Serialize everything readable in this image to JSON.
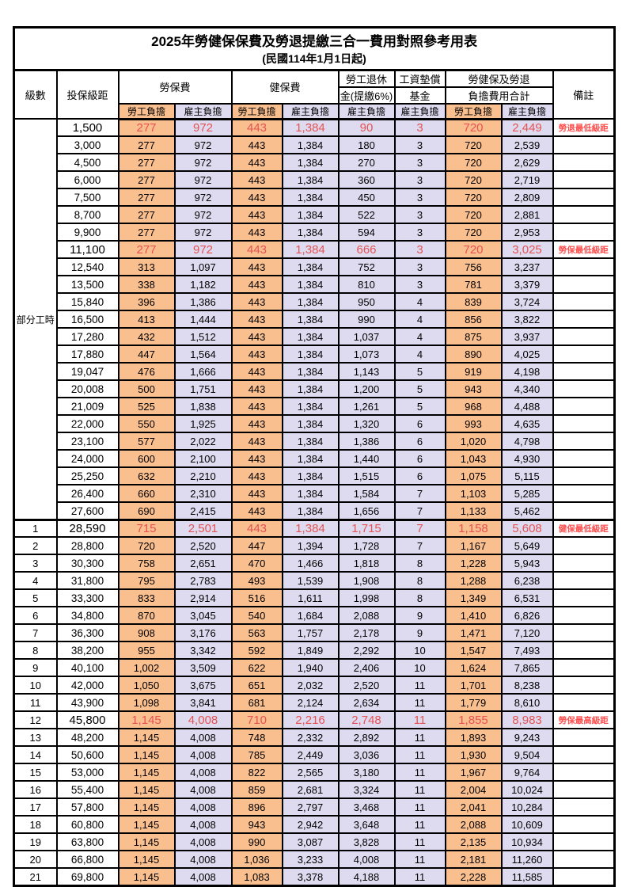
{
  "title": "2025年勞健保保費及勞退提繳三合一費用對照參考用表",
  "subtitle": "(民國114年1月1日起)",
  "columns": {
    "level": "級數",
    "bracket": "投保級距",
    "labor_group": "勞保費",
    "health_group": "健保費",
    "pension_line1": "勞工退休",
    "pension_line2": "金(提繳6%)",
    "wage_fund_line1": "工資墊償",
    "wage_fund_line2": "基金",
    "total_line1": "勞健保及勞退",
    "total_line2": "負擔費用合計",
    "note": "備註",
    "employee": "勞工負擔",
    "employer": "雇主負擔"
  },
  "part_time_label": "部分工時",
  "part_time_rowspan": 23,
  "colors": {
    "employee_bg": "#FABF8F",
    "employer_bg": "#DEDBF0",
    "highlight_value_text": "#E55353",
    "note_text": "#FF4D4D",
    "border": "#000000"
  },
  "rows": [
    {
      "level": "",
      "bracket": "1,500",
      "values": [
        "277",
        "972",
        "443",
        "1,384",
        "90",
        "3",
        "720",
        "2,449"
      ],
      "note": "勞退最低級距",
      "highlight": true,
      "section_start": false
    },
    {
      "level": "",
      "bracket": "3,000",
      "values": [
        "277",
        "972",
        "443",
        "1,384",
        "180",
        "3",
        "720",
        "2,539"
      ],
      "note": "",
      "highlight": false,
      "section_start": false
    },
    {
      "level": "",
      "bracket": "4,500",
      "values": [
        "277",
        "972",
        "443",
        "1,384",
        "270",
        "3",
        "720",
        "2,629"
      ],
      "note": "",
      "highlight": false,
      "section_start": false
    },
    {
      "level": "",
      "bracket": "6,000",
      "values": [
        "277",
        "972",
        "443",
        "1,384",
        "360",
        "3",
        "720",
        "2,719"
      ],
      "note": "",
      "highlight": false,
      "section_start": false
    },
    {
      "level": "",
      "bracket": "7,500",
      "values": [
        "277",
        "972",
        "443",
        "1,384",
        "450",
        "3",
        "720",
        "2,809"
      ],
      "note": "",
      "highlight": false,
      "section_start": false
    },
    {
      "level": "",
      "bracket": "8,700",
      "values": [
        "277",
        "972",
        "443",
        "1,384",
        "522",
        "3",
        "720",
        "2,881"
      ],
      "note": "",
      "highlight": false,
      "section_start": false
    },
    {
      "level": "",
      "bracket": "9,900",
      "values": [
        "277",
        "972",
        "443",
        "1,384",
        "594",
        "3",
        "720",
        "2,953"
      ],
      "note": "",
      "highlight": false,
      "section_start": false
    },
    {
      "level": "",
      "bracket": "11,100",
      "values": [
        "277",
        "972",
        "443",
        "1,384",
        "666",
        "3",
        "720",
        "3,025"
      ],
      "note": "勞保最低級距",
      "highlight": true,
      "section_start": false
    },
    {
      "level": "",
      "bracket": "12,540",
      "values": [
        "313",
        "1,097",
        "443",
        "1,384",
        "752",
        "3",
        "756",
        "3,237"
      ],
      "note": "",
      "highlight": false,
      "section_start": false
    },
    {
      "level": "",
      "bracket": "13,500",
      "values": [
        "338",
        "1,182",
        "443",
        "1,384",
        "810",
        "3",
        "781",
        "3,379"
      ],
      "note": "",
      "highlight": false,
      "section_start": false
    },
    {
      "level": "",
      "bracket": "15,840",
      "values": [
        "396",
        "1,386",
        "443",
        "1,384",
        "950",
        "4",
        "839",
        "3,724"
      ],
      "note": "",
      "highlight": false,
      "section_start": false
    },
    {
      "level": "",
      "bracket": "16,500",
      "values": [
        "413",
        "1,444",
        "443",
        "1,384",
        "990",
        "4",
        "856",
        "3,822"
      ],
      "note": "",
      "highlight": false,
      "section_start": false
    },
    {
      "level": "",
      "bracket": "17,280",
      "values": [
        "432",
        "1,512",
        "443",
        "1,384",
        "1,037",
        "4",
        "875",
        "3,937"
      ],
      "note": "",
      "highlight": false,
      "section_start": false
    },
    {
      "level": "",
      "bracket": "17,880",
      "values": [
        "447",
        "1,564",
        "443",
        "1,384",
        "1,073",
        "4",
        "890",
        "4,025"
      ],
      "note": "",
      "highlight": false,
      "section_start": false
    },
    {
      "level": "",
      "bracket": "19,047",
      "values": [
        "476",
        "1,666",
        "443",
        "1,384",
        "1,143",
        "5",
        "919",
        "4,198"
      ],
      "note": "",
      "highlight": false,
      "section_start": false
    },
    {
      "level": "",
      "bracket": "20,008",
      "values": [
        "500",
        "1,751",
        "443",
        "1,384",
        "1,200",
        "5",
        "943",
        "4,340"
      ],
      "note": "",
      "highlight": false,
      "section_start": false
    },
    {
      "level": "",
      "bracket": "21,009",
      "values": [
        "525",
        "1,838",
        "443",
        "1,384",
        "1,261",
        "5",
        "968",
        "4,488"
      ],
      "note": "",
      "highlight": false,
      "section_start": false
    },
    {
      "level": "",
      "bracket": "22,000",
      "values": [
        "550",
        "1,925",
        "443",
        "1,384",
        "1,320",
        "6",
        "993",
        "4,635"
      ],
      "note": "",
      "highlight": false,
      "section_start": false
    },
    {
      "level": "",
      "bracket": "23,100",
      "values": [
        "577",
        "2,022",
        "443",
        "1,384",
        "1,386",
        "6",
        "1,020",
        "4,798"
      ],
      "note": "",
      "highlight": false,
      "section_start": false
    },
    {
      "level": "",
      "bracket": "24,000",
      "values": [
        "600",
        "2,100",
        "443",
        "1,384",
        "1,440",
        "6",
        "1,043",
        "4,930"
      ],
      "note": "",
      "highlight": false,
      "section_start": false
    },
    {
      "level": "",
      "bracket": "25,250",
      "values": [
        "632",
        "2,210",
        "443",
        "1,384",
        "1,515",
        "6",
        "1,075",
        "5,115"
      ],
      "note": "",
      "highlight": false,
      "section_start": false
    },
    {
      "level": "",
      "bracket": "26,400",
      "values": [
        "660",
        "2,310",
        "443",
        "1,384",
        "1,584",
        "7",
        "1,103",
        "5,285"
      ],
      "note": "",
      "highlight": false,
      "section_start": false
    },
    {
      "level": "",
      "bracket": "27,600",
      "values": [
        "690",
        "2,415",
        "443",
        "1,384",
        "1,656",
        "7",
        "1,133",
        "5,462"
      ],
      "note": "",
      "highlight": false,
      "section_start": false
    },
    {
      "level": "1",
      "bracket": "28,590",
      "values": [
        "715",
        "2,501",
        "443",
        "1,384",
        "1,715",
        "7",
        "1,158",
        "5,608"
      ],
      "note": "健保最低級距",
      "highlight": true,
      "section_start": true
    },
    {
      "level": "2",
      "bracket": "28,800",
      "values": [
        "720",
        "2,520",
        "447",
        "1,394",
        "1,728",
        "7",
        "1,167",
        "5,649"
      ],
      "note": "",
      "highlight": false,
      "section_start": false
    },
    {
      "level": "3",
      "bracket": "30,300",
      "values": [
        "758",
        "2,651",
        "470",
        "1,466",
        "1,818",
        "8",
        "1,228",
        "5,943"
      ],
      "note": "",
      "highlight": false,
      "section_start": false
    },
    {
      "level": "4",
      "bracket": "31,800",
      "values": [
        "795",
        "2,783",
        "493",
        "1,539",
        "1,908",
        "8",
        "1,288",
        "6,238"
      ],
      "note": "",
      "highlight": false,
      "section_start": false
    },
    {
      "level": "5",
      "bracket": "33,300",
      "values": [
        "833",
        "2,914",
        "516",
        "1,611",
        "1,998",
        "8",
        "1,349",
        "6,531"
      ],
      "note": "",
      "highlight": false,
      "section_start": false
    },
    {
      "level": "6",
      "bracket": "34,800",
      "values": [
        "870",
        "3,045",
        "540",
        "1,684",
        "2,088",
        "9",
        "1,410",
        "6,826"
      ],
      "note": "",
      "highlight": false,
      "section_start": false
    },
    {
      "level": "7",
      "bracket": "36,300",
      "values": [
        "908",
        "3,176",
        "563",
        "1,757",
        "2,178",
        "9",
        "1,471",
        "7,120"
      ],
      "note": "",
      "highlight": false,
      "section_start": false
    },
    {
      "level": "8",
      "bracket": "38,200",
      "values": [
        "955",
        "3,342",
        "592",
        "1,849",
        "2,292",
        "10",
        "1,547",
        "7,493"
      ],
      "note": "",
      "highlight": false,
      "section_start": false
    },
    {
      "level": "9",
      "bracket": "40,100",
      "values": [
        "1,002",
        "3,509",
        "622",
        "1,940",
        "2,406",
        "10",
        "1,624",
        "7,865"
      ],
      "note": "",
      "highlight": false,
      "section_start": false
    },
    {
      "level": "10",
      "bracket": "42,000",
      "values": [
        "1,050",
        "3,675",
        "651",
        "2,032",
        "2,520",
        "11",
        "1,701",
        "8,238"
      ],
      "note": "",
      "highlight": false,
      "section_start": false
    },
    {
      "level": "11",
      "bracket": "43,900",
      "values": [
        "1,098",
        "3,841",
        "681",
        "2,124",
        "2,634",
        "11",
        "1,779",
        "8,610"
      ],
      "note": "",
      "highlight": false,
      "section_start": false
    },
    {
      "level": "12",
      "bracket": "45,800",
      "values": [
        "1,145",
        "4,008",
        "710",
        "2,216",
        "2,748",
        "11",
        "1,855",
        "8,983"
      ],
      "note": "勞保最高級距",
      "highlight": true,
      "section_start": false
    },
    {
      "level": "13",
      "bracket": "48,200",
      "values": [
        "1,145",
        "4,008",
        "748",
        "2,332",
        "2,892",
        "11",
        "1,893",
        "9,243"
      ],
      "note": "",
      "highlight": false,
      "section_start": false
    },
    {
      "level": "14",
      "bracket": "50,600",
      "values": [
        "1,145",
        "4,008",
        "785",
        "2,449",
        "3,036",
        "11",
        "1,930",
        "9,504"
      ],
      "note": "",
      "highlight": false,
      "section_start": false
    },
    {
      "level": "15",
      "bracket": "53,000",
      "values": [
        "1,145",
        "4,008",
        "822",
        "2,565",
        "3,180",
        "11",
        "1,967",
        "9,764"
      ],
      "note": "",
      "highlight": false,
      "section_start": false
    },
    {
      "level": "16",
      "bracket": "55,400",
      "values": [
        "1,145",
        "4,008",
        "859",
        "2,681",
        "3,324",
        "11",
        "2,004",
        "10,024"
      ],
      "note": "",
      "highlight": false,
      "section_start": false
    },
    {
      "level": "17",
      "bracket": "57,800",
      "values": [
        "1,145",
        "4,008",
        "896",
        "2,797",
        "3,468",
        "11",
        "2,041",
        "10,284"
      ],
      "note": "",
      "highlight": false,
      "section_start": false
    },
    {
      "level": "18",
      "bracket": "60,800",
      "values": [
        "1,145",
        "4,008",
        "943",
        "2,942",
        "3,648",
        "11",
        "2,088",
        "10,609"
      ],
      "note": "",
      "highlight": false,
      "section_start": false
    },
    {
      "level": "19",
      "bracket": "63,800",
      "values": [
        "1,145",
        "4,008",
        "990",
        "3,087",
        "3,828",
        "11",
        "2,135",
        "10,934"
      ],
      "note": "",
      "highlight": false,
      "section_start": false
    },
    {
      "level": "20",
      "bracket": "66,800",
      "values": [
        "1,145",
        "4,008",
        "1,036",
        "3,233",
        "4,008",
        "11",
        "2,181",
        "11,260"
      ],
      "note": "",
      "highlight": false,
      "section_start": false
    },
    {
      "level": "21",
      "bracket": "69,800",
      "values": [
        "1,145",
        "4,008",
        "1,083",
        "3,378",
        "4,188",
        "11",
        "2,228",
        "11,585"
      ],
      "note": "",
      "highlight": false,
      "section_start": false
    }
  ]
}
